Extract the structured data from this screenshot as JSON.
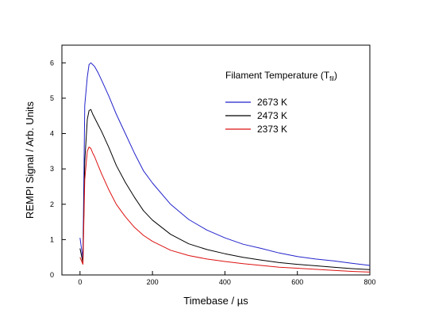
{
  "chart_data": {
    "type": "line",
    "title": "",
    "xlabel": "Timebase / µs",
    "ylabel": "REMPI Signal / Arb. Units",
    "xlim": [
      -50,
      800
    ],
    "ylim": [
      0,
      6.5
    ],
    "xticks": [
      0,
      200,
      400,
      600,
      800
    ],
    "yticks": [
      0,
      1,
      2,
      3,
      4,
      5,
      6
    ],
    "grid": false,
    "legend": {
      "title": "Filament Temperature (T",
      "title_sub": "fil",
      "title_close": ")",
      "placement": "top-right"
    },
    "series": [
      {
        "name": "2673 K",
        "color": "#2222cc",
        "x": [
          0,
          8,
          13,
          20,
          25,
          30,
          35,
          40,
          50,
          60,
          80,
          100,
          125,
          150,
          175,
          200,
          250,
          300,
          350,
          400,
          450,
          500,
          550,
          600,
          650,
          700,
          750,
          800
        ],
        "y": [
          1.05,
          0.45,
          4.8,
          5.6,
          5.95,
          6.0,
          5.95,
          5.9,
          5.72,
          5.5,
          5.05,
          4.55,
          4.0,
          3.45,
          2.95,
          2.6,
          2.0,
          1.57,
          1.27,
          1.05,
          0.87,
          0.75,
          0.62,
          0.52,
          0.45,
          0.4,
          0.33,
          0.27
        ]
      },
      {
        "name": "2473 K",
        "color": "#000000",
        "x": [
          0,
          8,
          13,
          20,
          25,
          30,
          35,
          40,
          50,
          60,
          80,
          100,
          125,
          150,
          175,
          200,
          250,
          300,
          350,
          400,
          450,
          500,
          550,
          600,
          650,
          700,
          750,
          800
        ],
        "y": [
          0.75,
          0.35,
          3.2,
          4.4,
          4.65,
          4.68,
          4.55,
          4.45,
          4.25,
          4.05,
          3.6,
          3.1,
          2.62,
          2.2,
          1.82,
          1.55,
          1.15,
          0.88,
          0.72,
          0.6,
          0.5,
          0.42,
          0.35,
          0.3,
          0.26,
          0.22,
          0.18,
          0.15
        ]
      },
      {
        "name": "2373 K",
        "color": "#dd1111",
        "x": [
          0,
          8,
          13,
          20,
          25,
          30,
          35,
          40,
          50,
          60,
          80,
          100,
          125,
          150,
          175,
          200,
          250,
          300,
          350,
          400,
          450,
          500,
          550,
          600,
          650,
          700,
          750,
          800
        ],
        "y": [
          0.5,
          0.3,
          2.7,
          3.5,
          3.62,
          3.58,
          3.45,
          3.35,
          3.1,
          2.85,
          2.4,
          2.0,
          1.65,
          1.35,
          1.12,
          0.95,
          0.7,
          0.55,
          0.45,
          0.38,
          0.32,
          0.27,
          0.22,
          0.19,
          0.16,
          0.13,
          0.1,
          0.08
        ]
      }
    ]
  }
}
